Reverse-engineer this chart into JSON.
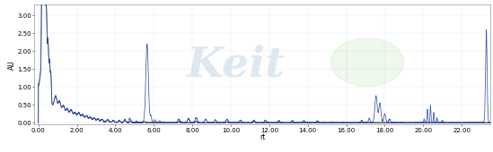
{
  "xlim": [
    -0.2,
    23.5
  ],
  "ylim": [
    -0.05,
    3.3
  ],
  "xlabel": "rt",
  "ylabel": "AU",
  "xticks": [
    0.0,
    2.0,
    4.0,
    6.0,
    8.0,
    10.0,
    12.0,
    14.0,
    16.0,
    18.0,
    20.0,
    22.0
  ],
  "xtick_labels": [
    "0.00",
    "2.00",
    "4.00",
    "6.00",
    "8.00",
    "10.00",
    "12.00",
    "14.00",
    "16.00",
    "18.00",
    "20.00",
    "22.00"
  ],
  "yticks": [
    0.0,
    0.5,
    1.0,
    1.5,
    2.0,
    2.5,
    3.0
  ],
  "ytick_labels": [
    "0.00",
    "0.50",
    "1.00",
    "1.50",
    "2.00",
    "2.50",
    "3.00"
  ],
  "black_color": "#444444",
  "blue_color": "#2244aa",
  "background_color": "#ffffff",
  "tick_fontsize": 5.0,
  "label_fontsize": 5.5,
  "xlabel_bottom": "rt"
}
